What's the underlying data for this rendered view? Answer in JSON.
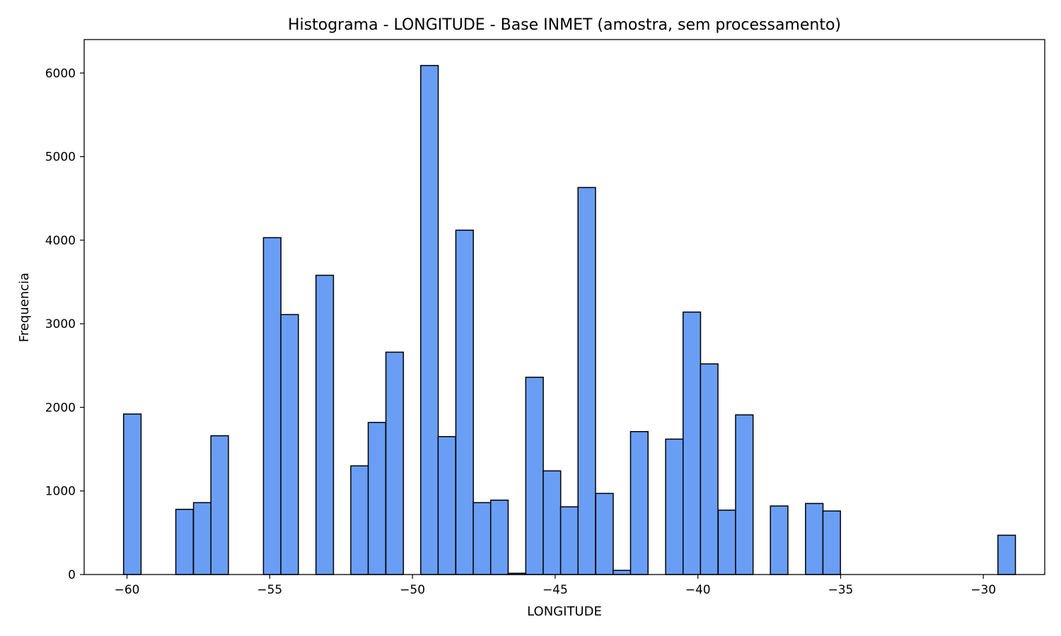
{
  "chart_data": {
    "type": "bar",
    "title": "Histograma - LONGITUDE - Base INMET (amostra, sem processamento)",
    "xlabel": "LONGITUDE",
    "ylabel": "Frequencia",
    "xlim": [
      -61.5,
      -27.85
    ],
    "ylim": [
      0,
      6400
    ],
    "grid": false,
    "bin_width": 0.613,
    "colors": {
      "bar_fill": "#6a9ef5",
      "bar_edge": "#000000"
    },
    "x_ticks": [
      {
        "value": -60,
        "label": "−60"
      },
      {
        "value": -55,
        "label": "−55"
      },
      {
        "value": -50,
        "label": "−50"
      },
      {
        "value": -45,
        "label": "−45"
      },
      {
        "value": -40,
        "label": "−40"
      },
      {
        "value": -35,
        "label": "−35"
      },
      {
        "value": -30,
        "label": "−30"
      }
    ],
    "y_ticks": [
      {
        "value": 0,
        "label": "0"
      },
      {
        "value": 1000,
        "label": "1000"
      },
      {
        "value": 2000,
        "label": "2000"
      },
      {
        "value": 3000,
        "label": "3000"
      },
      {
        "value": 4000,
        "label": "4000"
      },
      {
        "value": 5000,
        "label": "5000"
      },
      {
        "value": 6000,
        "label": "6000"
      }
    ],
    "bins": [
      {
        "x_start": -60.12,
        "value": 1920
      },
      {
        "x_start": -58.29,
        "value": 780
      },
      {
        "x_start": -57.67,
        "value": 860
      },
      {
        "x_start": -57.06,
        "value": 1660
      },
      {
        "x_start": -55.22,
        "value": 4030
      },
      {
        "x_start": -54.61,
        "value": 3110
      },
      {
        "x_start": -53.38,
        "value": 3580
      },
      {
        "x_start": -52.16,
        "value": 1300
      },
      {
        "x_start": -51.55,
        "value": 1820
      },
      {
        "x_start": -50.93,
        "value": 2660
      },
      {
        "x_start": -49.71,
        "value": 6090
      },
      {
        "x_start": -49.1,
        "value": 1650
      },
      {
        "x_start": -48.48,
        "value": 4120
      },
      {
        "x_start": -47.87,
        "value": 860
      },
      {
        "x_start": -47.26,
        "value": 890
      },
      {
        "x_start": -46.65,
        "value": 15
      },
      {
        "x_start": -46.03,
        "value": 2360
      },
      {
        "x_start": -45.42,
        "value": 1240
      },
      {
        "x_start": -44.81,
        "value": 810
      },
      {
        "x_start": -44.2,
        "value": 4630
      },
      {
        "x_start": -43.58,
        "value": 970
      },
      {
        "x_start": -42.97,
        "value": 50
      },
      {
        "x_start": -42.36,
        "value": 1710
      },
      {
        "x_start": -41.13,
        "value": 1620
      },
      {
        "x_start": -40.52,
        "value": 3140
      },
      {
        "x_start": -39.91,
        "value": 2520
      },
      {
        "x_start": -39.29,
        "value": 770
      },
      {
        "x_start": -38.68,
        "value": 1910
      },
      {
        "x_start": -37.46,
        "value": 820
      },
      {
        "x_start": -36.23,
        "value": 850
      },
      {
        "x_start": -35.62,
        "value": 760
      },
      {
        "x_start": -29.49,
        "value": 470
      }
    ]
  }
}
